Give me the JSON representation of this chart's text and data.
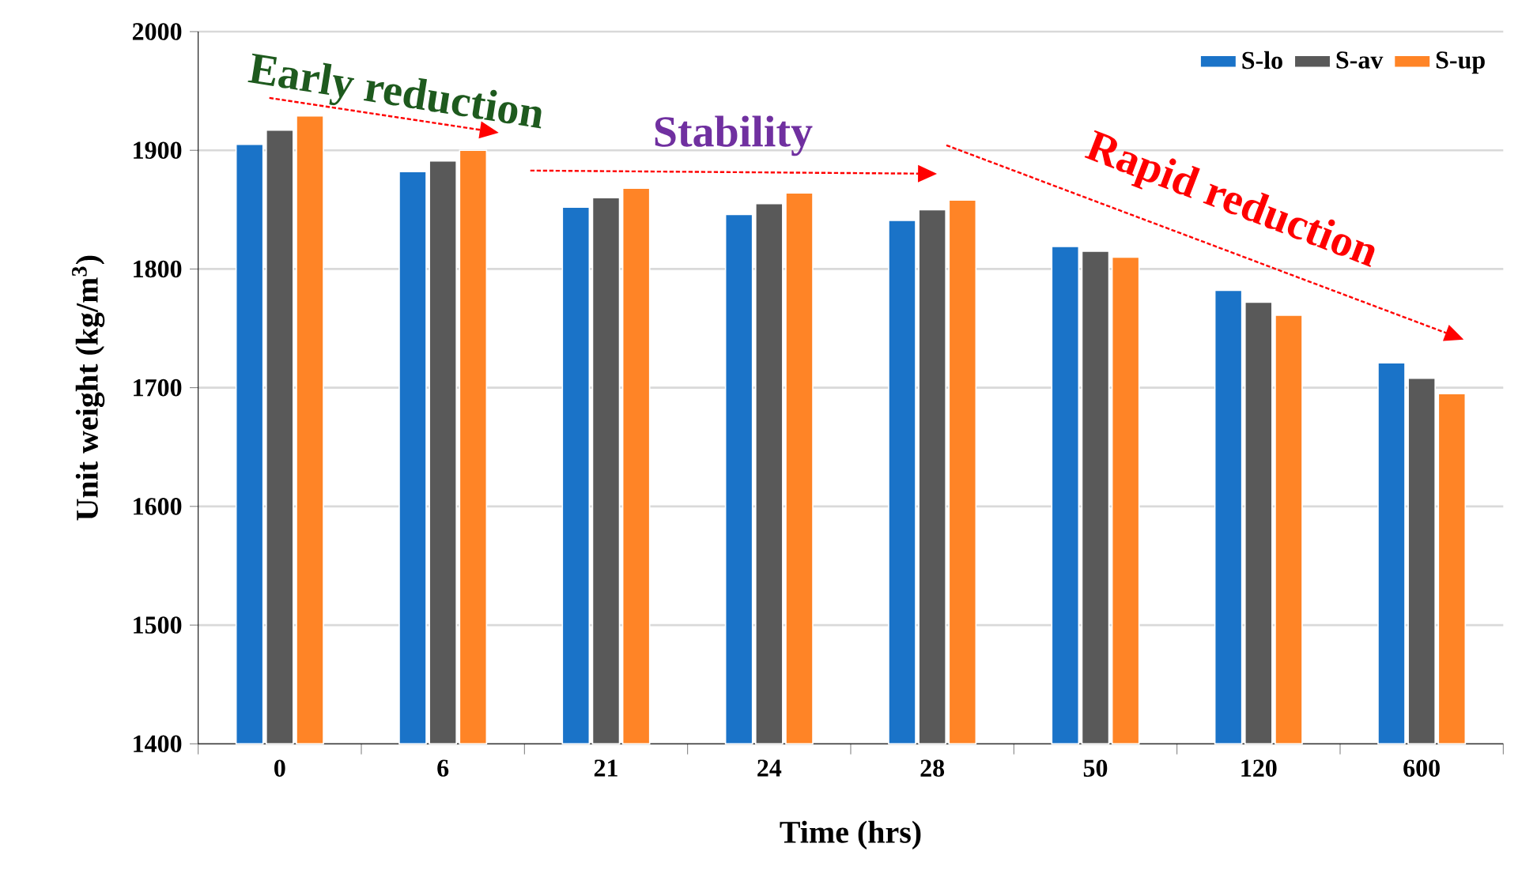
{
  "chart_data": {
    "type": "bar",
    "xlabel": "Time (hrs)",
    "ylabel": "Unit weight (kg/m$^{3}$)",
    "categories": [
      "0",
      "6",
      "21",
      "24",
      "28",
      "50",
      "120",
      "600"
    ],
    "series": [
      {
        "name": "S-lo",
        "color": "#1a73c8",
        "values": [
          1905,
          1882,
          1852,
          1846,
          1841,
          1819,
          1782,
          1721
        ]
      },
      {
        "name": "S-av",
        "color": "#595959",
        "values": [
          1917,
          1891,
          1860,
          1855,
          1850,
          1815,
          1772,
          1708
        ]
      },
      {
        "name": "S-up",
        "color": "#ff8426",
        "values": [
          1929,
          1900,
          1868,
          1864,
          1858,
          1810,
          1761,
          1695
        ]
      }
    ],
    "ylim": [
      1400,
      2000
    ],
    "yticks": [
      1400,
      1500,
      1600,
      1700,
      1800,
      1900,
      2000
    ],
    "grid": "y",
    "legend": "top right",
    "annotations": [
      "Early reduction",
      "Stability",
      "Rapid reduction"
    ]
  }
}
